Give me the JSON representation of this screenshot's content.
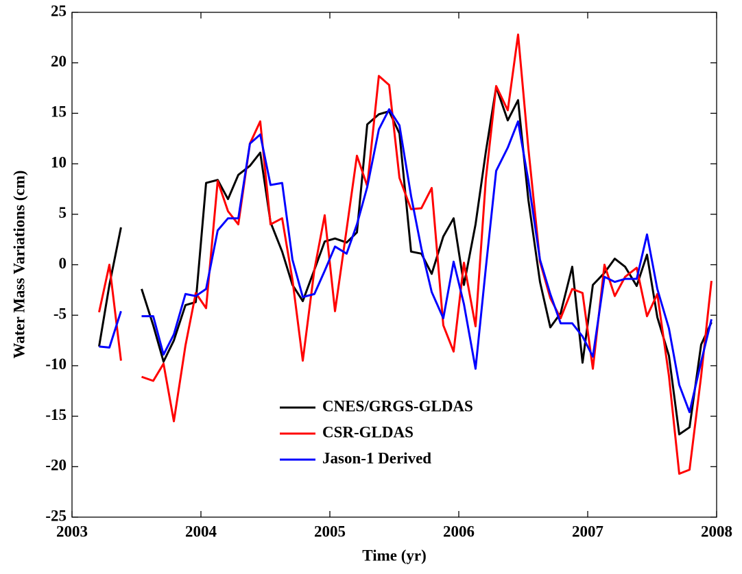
{
  "chart_data": {
    "type": "line",
    "x_label": "Time (yr)",
    "y_label": "Water Mass Variations (cm)",
    "x": [
      2003.21,
      2003.29,
      2003.38,
      2003.46,
      2003.54,
      2003.63,
      2003.71,
      2003.79,
      2003.88,
      2003.96,
      2004.04,
      2004.13,
      2004.21,
      2004.29,
      2004.38,
      2004.46,
      2004.54,
      2004.63,
      2004.71,
      2004.79,
      2004.88,
      2004.96,
      2005.04,
      2005.13,
      2005.21,
      2005.29,
      2005.38,
      2005.46,
      2005.54,
      2005.63,
      2005.71,
      2005.79,
      2005.88,
      2005.96,
      2006.04,
      2006.13,
      2006.21,
      2006.29,
      2006.38,
      2006.46,
      2006.54,
      2006.63,
      2006.71,
      2006.79,
      2006.88,
      2006.96,
      2007.04,
      2007.13,
      2007.21,
      2007.29,
      2007.38,
      2007.46,
      2007.54,
      2007.63,
      2007.71,
      2007.79,
      2007.88,
      2007.96
    ],
    "series": [
      {
        "name": "CNES/GRGS-GLDAS",
        "color": "#000000",
        "values": [
          -8.1,
          -2,
          3.7,
          null,
          -2.4,
          -6,
          -9.6,
          -7.5,
          -4,
          -3.7,
          8.1,
          8.4,
          6.5,
          8.9,
          9.8,
          11.1,
          4.2,
          1.3,
          -2,
          -3.6,
          -0.5,
          2.3,
          2.6,
          2.2,
          3.2,
          13.9,
          14.9,
          15.2,
          13,
          1.3,
          1.1,
          -0.9,
          2.8,
          4.6,
          -2,
          4,
          11.2,
          17.6,
          14.3,
          16.3,
          6.4,
          -1.7,
          -6.2,
          -4.8,
          -0.2,
          -9.7,
          -2,
          -0.8,
          0.6,
          -0.2,
          -2.1,
          1,
          -5.2,
          -9,
          -16.8,
          -16.1,
          -7.9,
          -5.7
        ]
      },
      {
        "name": "CSR-GLDAS",
        "color": "#ff0000",
        "values": [
          -4.7,
          0,
          -9.5,
          null,
          -11.1,
          -11.5,
          -9.8,
          -15.5,
          -8,
          -2.8,
          -4.3,
          8.3,
          5.3,
          4,
          12,
          14.2,
          4,
          4.6,
          -1.5,
          -9.5,
          -0.5,
          4.9,
          -4.6,
          3.5,
          10.8,
          7.8,
          18.7,
          17.8,
          8.6,
          5.5,
          5.6,
          7.6,
          -6,
          -8.6,
          0.2,
          -6.1,
          8.5,
          17.7,
          15.3,
          22.8,
          11.5,
          0.3,
          -3.3,
          -5.3,
          -2.4,
          -2.8,
          -10.3,
          0,
          -3.1,
          -1.2,
          -0.3,
          -5.1,
          -2.9,
          -11,
          -20.7,
          -20.3,
          -11,
          -1.6
        ]
      },
      {
        "name": "Jason-1 Derived",
        "color": "#0000ff",
        "values": [
          -8.1,
          -8.2,
          -4.6,
          null,
          -5.1,
          -5.1,
          -8.9,
          -6.9,
          -2.9,
          -3.1,
          -2.4,
          3.4,
          4.6,
          4.6,
          12,
          12.9,
          7.9,
          8.1,
          0.5,
          -3.2,
          -2.9,
          -0.6,
          1.8,
          1.1,
          4,
          7.7,
          13.4,
          15.4,
          13.8,
          6.8,
          1.6,
          -2.7,
          -5.3,
          0.3,
          -3.9,
          -10.3,
          -0.3,
          9.3,
          11.6,
          14.2,
          8.3,
          0.5,
          -2.9,
          -5.8,
          -5.8,
          -7.1,
          -9.1,
          -1.2,
          -1.7,
          -1.4,
          -1.4,
          3,
          -2.4,
          -6.3,
          -11.9,
          -14.6,
          -9.6,
          -5.4
        ]
      }
    ],
    "xlim": [
      2003,
      2008
    ],
    "xticks": [
      2003,
      2004,
      2005,
      2006,
      2007,
      2008
    ],
    "ylim": [
      -25,
      25
    ],
    "yticks": [
      -25,
      -20,
      -15,
      -10,
      -5,
      0,
      5,
      10,
      15,
      20,
      25
    ],
    "grid": false,
    "legend": "lower center"
  }
}
